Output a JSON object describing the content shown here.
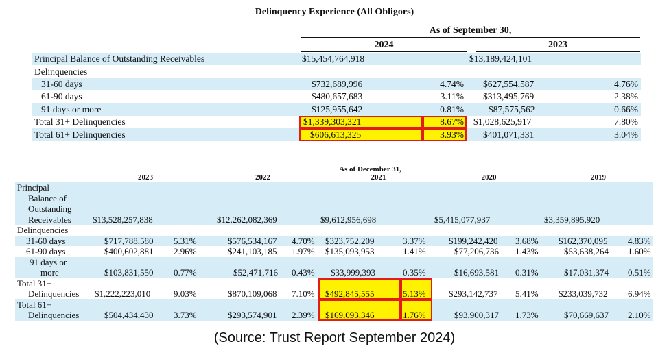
{
  "title": "Delinquency Experience (All Obligors)",
  "top": {
    "caption": "As of September 30,",
    "years": [
      "2024",
      "2023"
    ],
    "rows": [
      {
        "label": "Principal Balance of Outstanding Receivables",
        "v2024": "$15,454,764,918",
        "p2024": "",
        "v2023": "$13,189,424,101",
        "p2023": ""
      },
      {
        "label": "Delinquencies",
        "v2024": "",
        "p2024": "",
        "v2023": "",
        "p2023": ""
      },
      {
        "label": "31-60 days",
        "v2024": "$732,689,996",
        "p2024": "4.74%",
        "v2023": "$627,554,587",
        "p2023": "4.76%"
      },
      {
        "label": "61-90 days",
        "v2024": "$480,657,683",
        "p2024": "3.11%",
        "v2023": "$313,495,769",
        "p2023": "2.38%"
      },
      {
        "label": "91 days or more",
        "v2024": "$125,955,642",
        "p2024": "0.81%",
        "v2023": "$87,575,562",
        "p2023": "0.66%"
      },
      {
        "label": "Total 31+ Delinquencies",
        "v2024": "$1,339,303,321",
        "p2024": "8.67%",
        "v2023": "$1,028,625,917",
        "p2023": "7.80%"
      },
      {
        "label": "Total 61+ Delinquencies",
        "v2024": "$606,613,325",
        "p2024": "3.93%",
        "v2023": "$401,071,331",
        "p2023": "3.04%"
      }
    ]
  },
  "bottom": {
    "caption": "As of December 31,",
    "years": [
      "2023",
      "2022",
      "2021",
      "2020",
      "2019"
    ],
    "principal": {
      "label_lines": [
        "Principal",
        "Balance of",
        "Outstanding",
        "Receivables"
      ],
      "values": [
        "$13,528,257,838",
        "$12,262,082,369",
        "$9,612,956,698",
        "$5,415,077,937",
        "$3,359,895,920"
      ]
    },
    "delinquencies_label": "Delinquencies",
    "d31": {
      "label": "31-60 days",
      "values": [
        "$717,788,580",
        "$576,534,167",
        "$323,752,209",
        "$199,242,420",
        "$162,370,095"
      ],
      "pcts": [
        "5.31%",
        "4.70%",
        "3.37%",
        "3.68%",
        "4.83%"
      ]
    },
    "d61": {
      "label": "61-90 days",
      "values": [
        "$400,602,881",
        "$241,103,185",
        "$135,093,953",
        "$77,206,736",
        "$53,638,264"
      ],
      "pcts": [
        "2.96%",
        "1.97%",
        "1.41%",
        "1.43%",
        "1.60%"
      ]
    },
    "d91": {
      "label_lines": [
        "91 days or",
        "more"
      ],
      "values": [
        "$103,831,550",
        "$52,471,716",
        "$33,999,393",
        "$16,693,581",
        "$17,031,374"
      ],
      "pcts": [
        "0.77%",
        "0.43%",
        "0.35%",
        "0.31%",
        "0.51%"
      ]
    },
    "t31": {
      "label_lines": [
        "Total 31+",
        "Delinquencies"
      ],
      "values": [
        "$1,222,223,010",
        "$870,109,068",
        "$492,845,555",
        "$293,142,737",
        "$233,039,732"
      ],
      "pcts": [
        "9.03%",
        "7.10%",
        "5.13%",
        "5.41%",
        "6.94%"
      ]
    },
    "t61": {
      "label_lines": [
        "Total 61+",
        "Delinquencies"
      ],
      "values": [
        "$504,434,430",
        "$293,574,901",
        "$169,093,346",
        "$93,900,317",
        "$70,669,637"
      ],
      "pcts": [
        "3.73%",
        "2.39%",
        "1.76%",
        "1.73%",
        "2.10%"
      ]
    }
  },
  "highlight_color": "#fff200",
  "highlight_border": "#e21b1b",
  "row_shade": "#d6ecf7",
  "source": "(Source: Trust Report September 2024)"
}
